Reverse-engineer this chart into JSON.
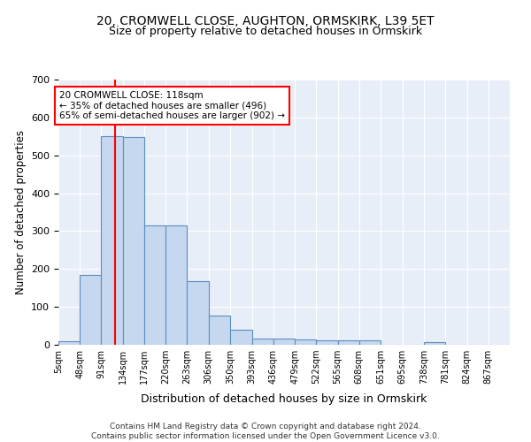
{
  "title_line1": "20, CROMWELL CLOSE, AUGHTON, ORMSKIRK, L39 5ET",
  "title_line2": "Size of property relative to detached houses in Ormskirk",
  "xlabel": "Distribution of detached houses by size in Ormskirk",
  "ylabel": "Number of detached properties",
  "footnote": "Contains HM Land Registry data © Crown copyright and database right 2024.\nContains public sector information licensed under the Open Government Licence v3.0.",
  "bar_edges": [
    5,
    48,
    91,
    134,
    177,
    220,
    263,
    306,
    350,
    393,
    436,
    479,
    522,
    565,
    608,
    651,
    695,
    738,
    781,
    824,
    867
  ],
  "bar_heights": [
    10,
    185,
    550,
    548,
    315,
    315,
    168,
    76,
    40,
    17,
    17,
    13,
    12,
    12,
    12,
    0,
    0,
    8,
    0,
    0,
    0
  ],
  "bar_color": "#c5d8f0",
  "bar_edge_color": "#5a8fbe",
  "property_size": 118,
  "annotation_line1": "20 CROMWELL CLOSE: 118sqm",
  "annotation_line2": "← 35% of detached houses are smaller (496)",
  "annotation_line3": "65% of semi-detached houses are larger (902) →",
  "annotation_box_color": "white",
  "annotation_box_edge_color": "red",
  "vline_color": "red",
  "ylim": [
    0,
    700
  ],
  "yticks": [
    0,
    100,
    200,
    300,
    400,
    500,
    600,
    700
  ],
  "background_color": "#e8eef8",
  "grid_color": "white",
  "title_fontsize": 10,
  "subtitle_fontsize": 9,
  "tick_label_fontsize": 7,
  "ylabel_fontsize": 8.5,
  "xlabel_fontsize": 9
}
